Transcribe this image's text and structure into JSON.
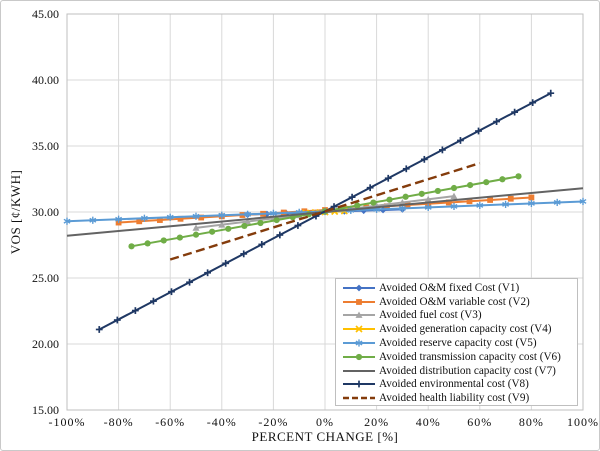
{
  "window": {
    "background": "#FFFFFF",
    "border_color": "#C9C9C9"
  },
  "colors": {
    "gridline": "#D9D9D9",
    "plot_border": "#BFBFBF",
    "text": "#111111"
  },
  "chart_data": {
    "type": "line",
    "title": "",
    "xlabel": "PERCENT CHANGE [%]",
    "ylabel": "VOS [¢/KWH]",
    "xlim": [
      -100,
      100
    ],
    "ylim": [
      15,
      45
    ],
    "grid": true,
    "legend_position": "inside-bottom-right",
    "x_ticks": [
      {
        "value": -100,
        "label": "-100%"
      },
      {
        "value": -80,
        "label": "-80%"
      },
      {
        "value": -60,
        "label": "-60%"
      },
      {
        "value": -40,
        "label": "-40%"
      },
      {
        "value": -20,
        "label": "-20%"
      },
      {
        "value": 0,
        "label": "0%"
      },
      {
        "value": 20,
        "label": "20%"
      },
      {
        "value": 40,
        "label": "40%"
      },
      {
        "value": 60,
        "label": "60%"
      },
      {
        "value": 80,
        "label": "80%"
      },
      {
        "value": 100,
        "label": "100%"
      }
    ],
    "y_ticks": [
      {
        "value": 15,
        "label": "15.00"
      },
      {
        "value": 20,
        "label": "20.00"
      },
      {
        "value": 25,
        "label": "25.00"
      },
      {
        "value": 30,
        "label": "30.00"
      },
      {
        "value": 35,
        "label": "35.00"
      },
      {
        "value": 40,
        "label": "40.00"
      },
      {
        "value": 45,
        "label": "45.00"
      }
    ],
    "base_point": {
      "x": 0,
      "y": 30.0
    },
    "series": [
      {
        "id": "V1",
        "label": "Avoided O&M fixed Cost (V1)",
        "color": "#4472C4",
        "marker": "diamond",
        "line": "solid",
        "x": [
          -30,
          30
        ],
        "y": [
          29.8,
          30.2
        ],
        "marker_step": 7.5
      },
      {
        "id": "V2",
        "label": "Avoided O&M variable cost (V2)",
        "color": "#ED7D31",
        "marker": "square",
        "line": "solid",
        "x": [
          -80,
          80
        ],
        "y": [
          29.2,
          31.1
        ],
        "marker_step": 8
      },
      {
        "id": "V3",
        "label": "Avoided fuel cost (V3)",
        "color": "#A5A5A5",
        "marker": "triangle",
        "line": "solid",
        "x": [
          -50,
          50
        ],
        "y": [
          28.8,
          31.2
        ],
        "marker_step": 10
      },
      {
        "id": "V4",
        "label": "Avoided generation capacity cost (V4)",
        "color": "#FFC000",
        "marker": "x",
        "line": "solid",
        "x": [
          -7.5,
          7.5
        ],
        "y": [
          29.93,
          30.07
        ],
        "marker_step": 3.75
      },
      {
        "id": "V5",
        "label": "Avoided reserve capacity cost (V5)",
        "color": "#5B9BD5",
        "marker": "asterisk",
        "line": "solid",
        "x": [
          -100,
          100
        ],
        "y": [
          29.3,
          30.8
        ],
        "marker_step": 10
      },
      {
        "id": "V6",
        "label": "Avoided transmission capacity cost (V6)",
        "color": "#70AD47",
        "marker": "circle",
        "line": "solid",
        "x": [
          -75,
          75
        ],
        "y": [
          27.4,
          32.7
        ],
        "marker_step": 6.25
      },
      {
        "id": "V7",
        "label": "Avoided distribution capacity cost (V7)",
        "color": "#636363",
        "marker": "none",
        "line": "solid",
        "x": [
          -100,
          100
        ],
        "y": [
          28.2,
          31.8
        ],
        "marker_step": 0
      },
      {
        "id": "V8",
        "label": "Avoided environmental cost (V8)",
        "color": "#1F3864",
        "marker": "plus",
        "line": "solid",
        "x": [
          -87.5,
          87.5
        ],
        "y": [
          21.1,
          39.0
        ],
        "marker_step": 7
      },
      {
        "id": "V9",
        "label": "Avoided health liability cost (V9)",
        "color": "#843C0C",
        "marker": "none",
        "line": "dashed",
        "x": [
          -60,
          60
        ],
        "y": [
          26.4,
          33.7
        ],
        "marker_step": 0
      }
    ]
  }
}
